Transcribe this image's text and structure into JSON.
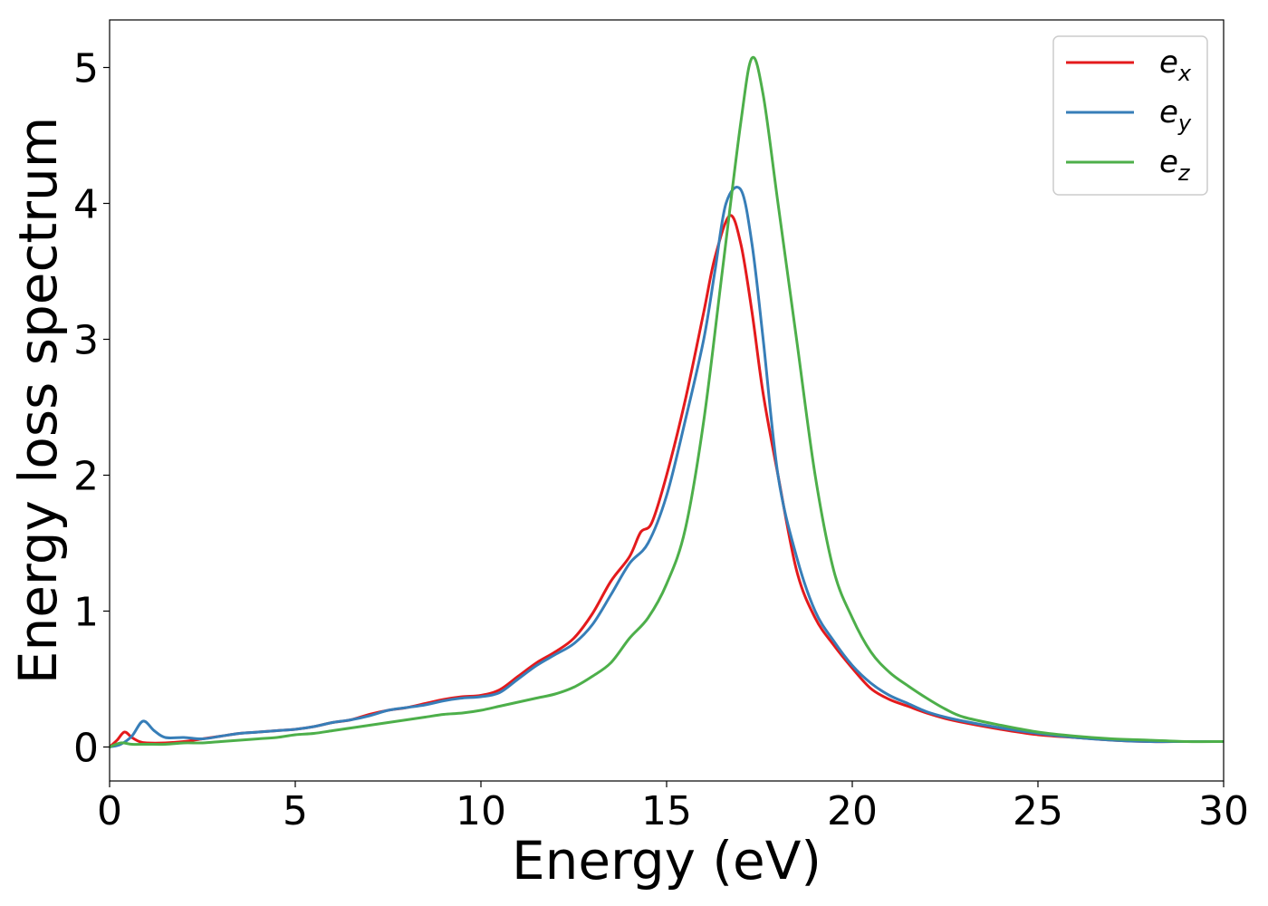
{
  "chart_data": {
    "type": "line",
    "title": "",
    "xlabel": "Energy (eV)",
    "ylabel": "Energy loss spectrum",
    "xlim": [
      0,
      30
    ],
    "ylim": [
      -0.25,
      5.35
    ],
    "xticks": [
      0,
      5,
      10,
      15,
      20,
      25,
      30
    ],
    "xtick_labels": [
      "0",
      "5",
      "10",
      "15",
      "20",
      "25",
      "30"
    ],
    "yticks": [
      0,
      1,
      2,
      3,
      4,
      5
    ],
    "ytick_labels": [
      "0",
      "1",
      "2",
      "3",
      "4",
      "5"
    ],
    "grid": false,
    "legend_position": "top-right",
    "series": [
      {
        "name": "e",
        "subscript": "x",
        "color": "#e41a1c",
        "x": [
          0,
          0.2,
          0.4,
          0.6,
          0.8,
          1,
          1.5,
          2,
          2.5,
          3,
          3.5,
          4,
          4.5,
          5,
          5.5,
          6,
          6.5,
          7,
          7.5,
          8,
          8.5,
          9,
          9.5,
          10,
          10.5,
          11,
          11.5,
          12,
          12.5,
          13,
          13.5,
          14,
          14.3,
          14.6,
          15,
          15.5,
          16,
          16.3,
          16.7,
          17,
          17.3,
          17.6,
          18,
          18.5,
          19,
          19.5,
          20,
          20.5,
          21,
          21.5,
          22,
          22.5,
          23,
          24,
          25,
          26,
          27,
          28,
          29,
          30
        ],
        "y": [
          0.0,
          0.05,
          0.11,
          0.07,
          0.04,
          0.03,
          0.03,
          0.04,
          0.06,
          0.08,
          0.1,
          0.11,
          0.12,
          0.13,
          0.15,
          0.18,
          0.2,
          0.24,
          0.27,
          0.29,
          0.32,
          0.35,
          0.37,
          0.38,
          0.42,
          0.52,
          0.62,
          0.7,
          0.8,
          0.98,
          1.22,
          1.4,
          1.58,
          1.65,
          2.0,
          2.55,
          3.2,
          3.6,
          3.91,
          3.7,
          3.2,
          2.6,
          2.0,
          1.3,
          0.95,
          0.75,
          0.58,
          0.43,
          0.35,
          0.3,
          0.25,
          0.21,
          0.18,
          0.13,
          0.09,
          0.07,
          0.05,
          0.04,
          0.04,
          0.04
        ]
      },
      {
        "name": "e",
        "subscript": "y",
        "color": "#377eb8",
        "x": [
          0,
          0.3,
          0.6,
          0.9,
          1.2,
          1.5,
          2,
          2.5,
          3,
          3.5,
          4,
          4.5,
          5,
          5.5,
          6,
          6.5,
          7,
          7.5,
          8,
          8.5,
          9,
          9.5,
          10,
          10.5,
          11,
          11.5,
          12,
          12.5,
          13,
          13.5,
          14,
          14.5,
          15,
          15.5,
          16,
          16.3,
          16.6,
          17,
          17.3,
          17.6,
          18,
          18.5,
          19,
          19.5,
          20,
          20.5,
          21,
          21.5,
          22,
          22.5,
          23,
          24,
          25,
          26,
          27,
          28,
          29,
          30
        ],
        "y": [
          0.0,
          0.02,
          0.08,
          0.19,
          0.12,
          0.07,
          0.07,
          0.06,
          0.08,
          0.1,
          0.11,
          0.12,
          0.13,
          0.15,
          0.18,
          0.2,
          0.23,
          0.27,
          0.29,
          0.31,
          0.34,
          0.36,
          0.37,
          0.4,
          0.5,
          0.6,
          0.68,
          0.76,
          0.9,
          1.12,
          1.35,
          1.5,
          1.85,
          2.4,
          3.0,
          3.5,
          4.0,
          4.1,
          3.7,
          3.0,
          2.0,
          1.4,
          1.0,
          0.78,
          0.6,
          0.47,
          0.38,
          0.32,
          0.26,
          0.22,
          0.19,
          0.14,
          0.1,
          0.07,
          0.05,
          0.04,
          0.04,
          0.04
        ]
      },
      {
        "name": "e",
        "subscript": "z",
        "color": "#4daf4a",
        "x": [
          0,
          0.3,
          0.6,
          1,
          1.5,
          2,
          2.5,
          3,
          3.5,
          4,
          4.5,
          5,
          5.5,
          6,
          6.5,
          7,
          7.5,
          8,
          8.5,
          9,
          9.5,
          10,
          10.5,
          11,
          11.5,
          12,
          12.5,
          13,
          13.5,
          14,
          14.5,
          15,
          15.5,
          16,
          16.5,
          17,
          17.3,
          17.6,
          18,
          18.5,
          19,
          19.5,
          20,
          20.5,
          21,
          21.5,
          22,
          22.5,
          23,
          24,
          25,
          26,
          27,
          28,
          29,
          30
        ],
        "y": [
          0.0,
          0.03,
          0.02,
          0.02,
          0.02,
          0.03,
          0.03,
          0.04,
          0.05,
          0.06,
          0.07,
          0.09,
          0.1,
          0.12,
          0.14,
          0.16,
          0.18,
          0.2,
          0.22,
          0.24,
          0.25,
          0.27,
          0.3,
          0.33,
          0.36,
          0.39,
          0.44,
          0.52,
          0.62,
          0.8,
          0.95,
          1.2,
          1.6,
          2.4,
          3.5,
          4.6,
          5.07,
          4.8,
          4.0,
          3.0,
          2.0,
          1.3,
          0.95,
          0.7,
          0.55,
          0.45,
          0.36,
          0.28,
          0.22,
          0.16,
          0.11,
          0.08,
          0.06,
          0.05,
          0.04,
          0.04
        ]
      }
    ]
  }
}
